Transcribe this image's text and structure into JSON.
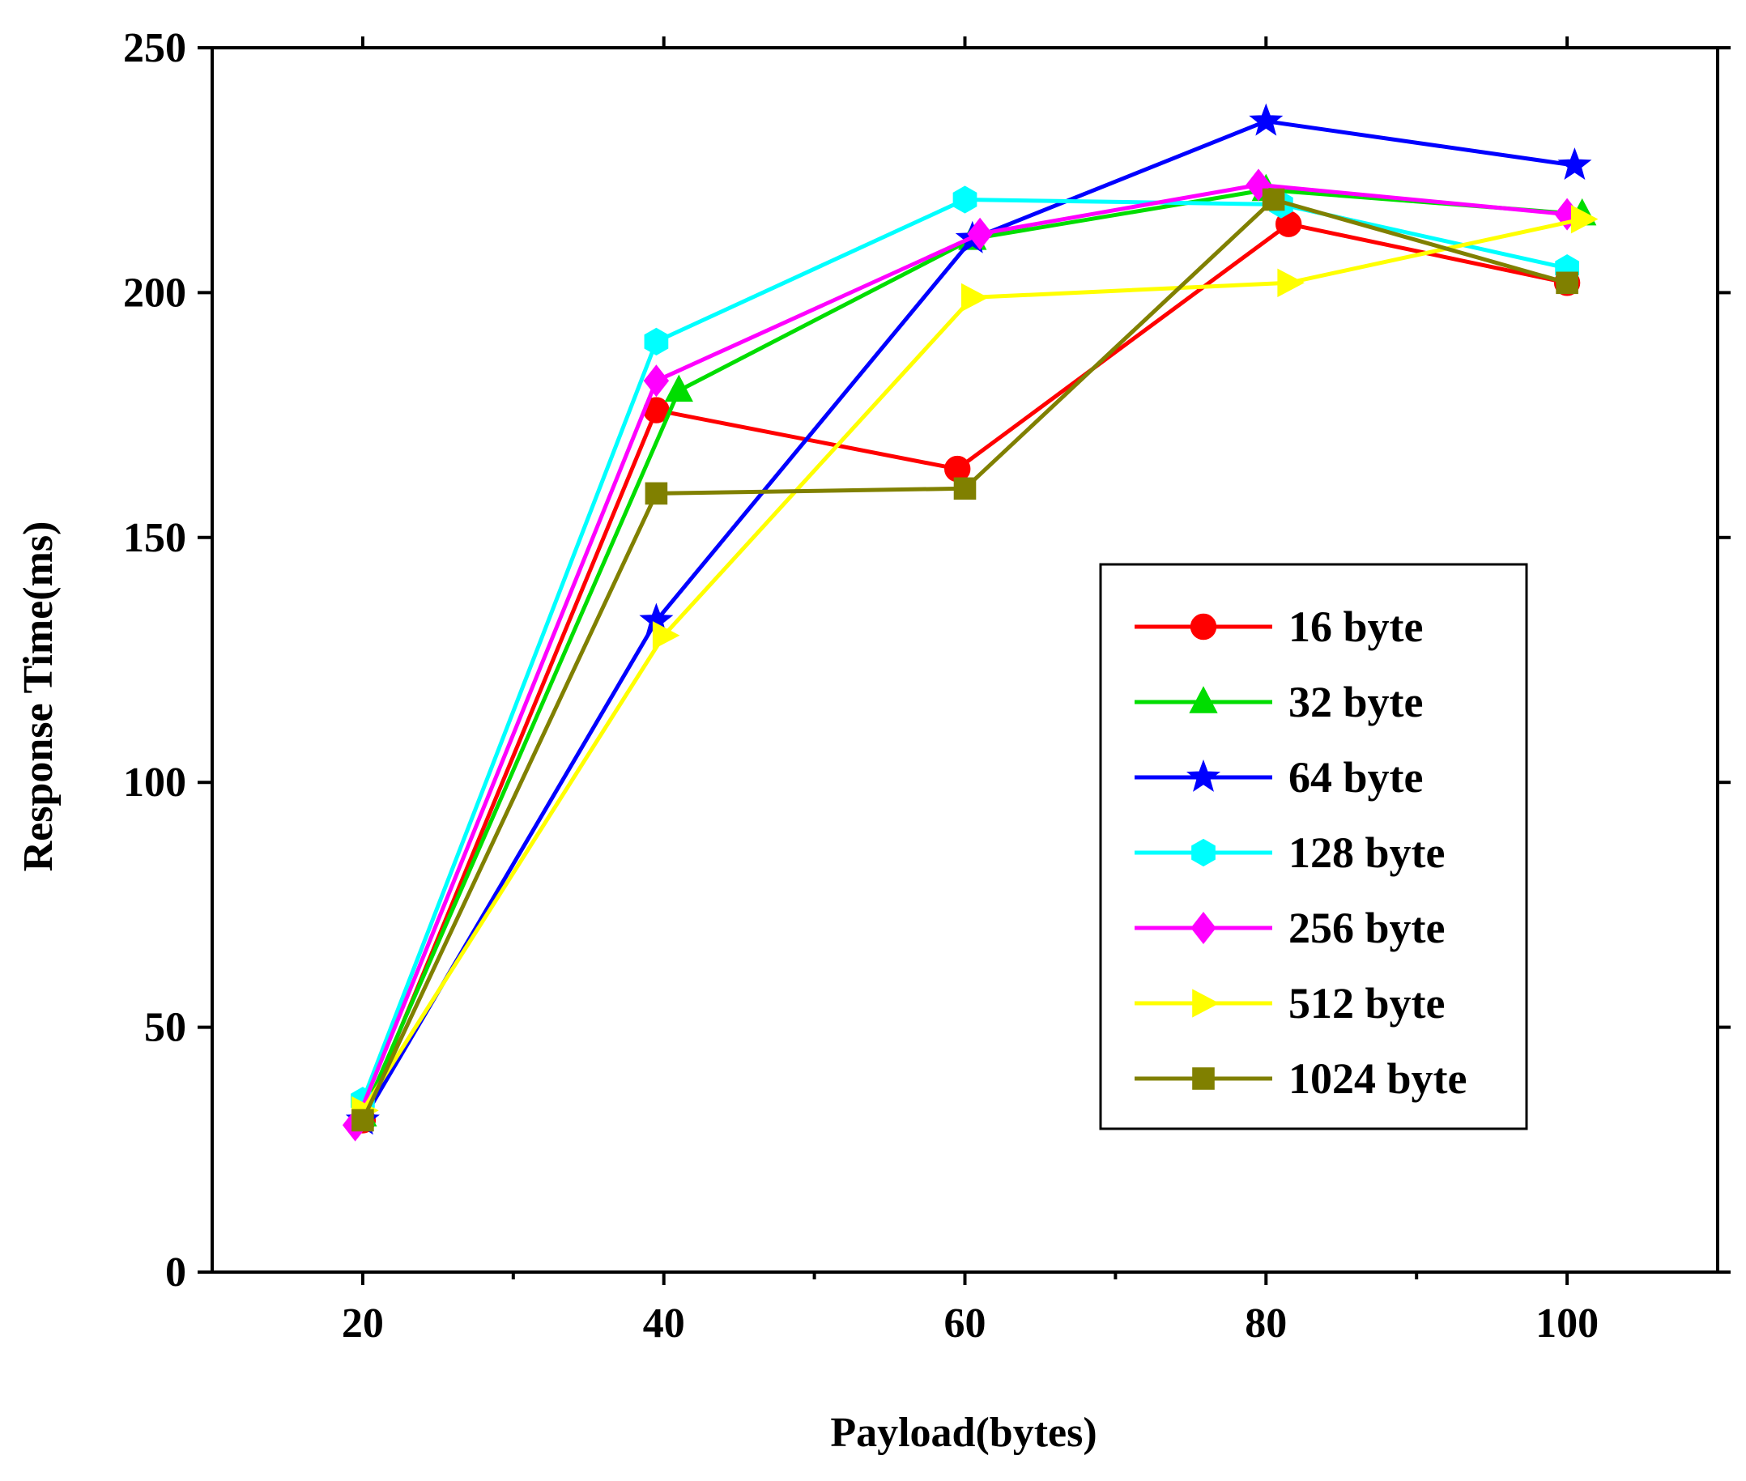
{
  "chart_data": {
    "type": "line",
    "title": "",
    "xlabel": "Payload(bytes)",
    "ylabel": "Response Time(ms)",
    "x": [
      20,
      40,
      60,
      80,
      100
    ],
    "xlim": [
      10,
      110
    ],
    "ylim": [
      0,
      250
    ],
    "xticks": [
      20,
      40,
      60,
      80,
      100
    ],
    "yticks": [
      0,
      50,
      100,
      150,
      200,
      250
    ],
    "grid": false,
    "legend_position": "center-right",
    "series": [
      {
        "name": "16 byte",
        "color": "#ff0000",
        "marker": "circle",
        "x": [
          20,
          39.5,
          59.5,
          81.5,
          100
        ],
        "values": [
          31,
          176,
          164,
          214,
          202
        ]
      },
      {
        "name": "32 byte",
        "color": "#00dd00",
        "marker": "triangle-up",
        "x": [
          20,
          41,
          60.5,
          80,
          101
        ],
        "values": [
          32,
          180,
          211,
          221,
          216
        ]
      },
      {
        "name": "64 byte",
        "color": "#0000ff",
        "marker": "star",
        "x": [
          20,
          39.5,
          60.5,
          80,
          100.5
        ],
        "values": [
          31,
          133,
          211,
          235,
          226
        ]
      },
      {
        "name": "128 byte",
        "color": "#00ffff",
        "marker": "hexagon",
        "x": [
          20,
          39.5,
          60,
          81,
          100
        ],
        "values": [
          35,
          190,
          219,
          218,
          205
        ]
      },
      {
        "name": "256 byte",
        "color": "#ff00ff",
        "marker": "diamond",
        "x": [
          19.5,
          39.5,
          61,
          79.5,
          100
        ],
        "values": [
          30,
          182,
          212,
          222,
          216
        ]
      },
      {
        "name": "512 byte",
        "color": "#ffff00",
        "marker": "triangle-right",
        "x": [
          20,
          40,
          60.5,
          81.5,
          101
        ],
        "values": [
          33,
          130,
          199,
          202,
          215
        ]
      },
      {
        "name": "1024 byte",
        "color": "#808000",
        "marker": "square",
        "x": [
          20,
          39.5,
          60,
          80.5,
          100
        ],
        "values": [
          31,
          159,
          160,
          219,
          202
        ]
      }
    ]
  }
}
